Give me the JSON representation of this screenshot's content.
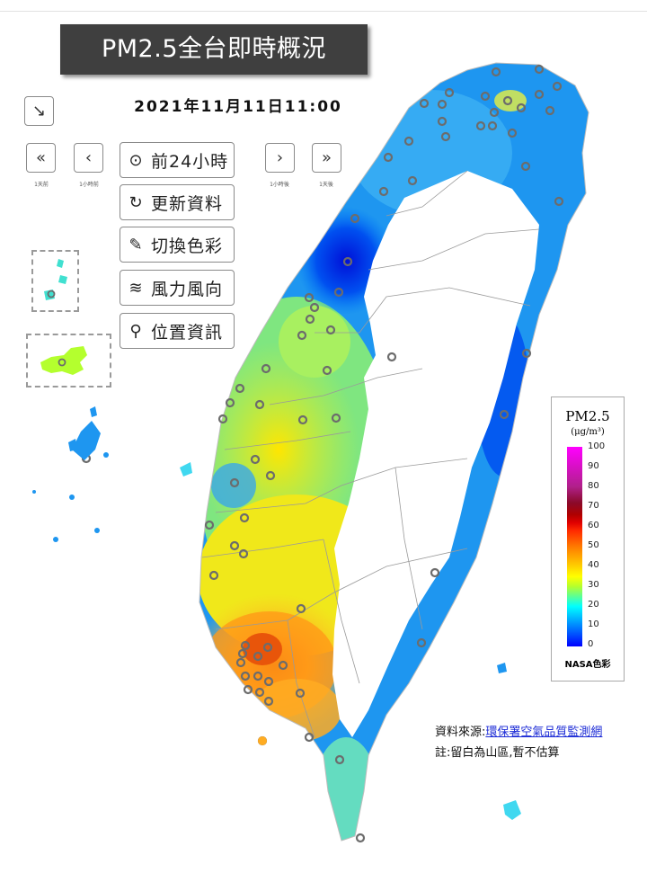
{
  "title": "PM2.5全台即時概況",
  "timestamp": "2021年11月11日11:00",
  "nav": {
    "day_back": {
      "icon": "«",
      "label": "1天前"
    },
    "hour_back": {
      "icon": "‹",
      "label": "1小時前"
    },
    "hour_fwd": {
      "icon": "›",
      "label": "1小時後"
    },
    "day_fwd": {
      "icon": "»",
      "label": "1天後"
    },
    "collapse_icon": "↘"
  },
  "menu": [
    {
      "label": "前24小時",
      "icon": "play-circle-icon",
      "glyph": "⊙"
    },
    {
      "label": "更新資料",
      "icon": "refresh-icon",
      "glyph": "↻"
    },
    {
      "label": "切換色彩",
      "icon": "paintbrush-icon",
      "glyph": "✎"
    },
    {
      "label": "風力風向",
      "icon": "wind-icon",
      "glyph": "≋"
    },
    {
      "label": "位置資訊",
      "icon": "map-pin-icon",
      "glyph": "⚲"
    }
  ],
  "legend": {
    "title": "PM2.5",
    "unit": "(μg/m³)",
    "ticks": [
      "100",
      "90",
      "80",
      "70",
      "60",
      "50",
      "40",
      "30",
      "20",
      "10",
      "0"
    ],
    "palette": "NASA色彩",
    "colors": {
      "0": "#0000ff",
      "10": "#00c8ff",
      "20": "#b4ff2e",
      "30": "#ffe000",
      "40": "#ff8c00",
      "50": "#ff2a00",
      "60": "#e00000",
      "70": "#b00000",
      "80": "#8a0a2a",
      "90": "#b0208a",
      "100": "#ff00ff"
    }
  },
  "source_prefix": "資料來源:",
  "source_link": "環保署空氣品質監測網",
  "note": "註:留白為山區,暫不估算"
}
